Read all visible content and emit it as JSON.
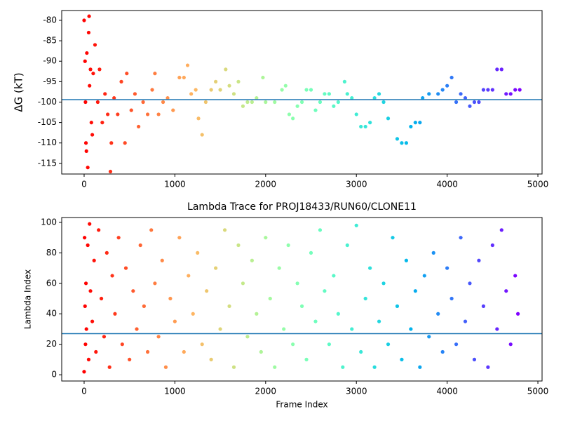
{
  "chart_data": [
    {
      "type": "scatter",
      "ylabel": "ΔG (kT)",
      "colormap": "rainbow_r",
      "xlim": [
        -247,
        5046
      ],
      "ylim": [
        -117.6,
        -77.6
      ],
      "xticks": [
        0,
        1000,
        2000,
        3000,
        4000,
        5000
      ],
      "yticks": [
        -80,
        -85,
        -90,
        -95,
        -100,
        -105,
        -110,
        -115
      ],
      "hline": -99.4,
      "hline_color": "#1f77b4",
      "x": [
        0,
        10,
        15,
        20,
        25,
        30,
        40,
        50,
        55,
        60,
        70,
        80,
        90,
        100,
        120,
        150,
        170,
        200,
        230,
        260,
        290,
        300,
        330,
        370,
        410,
        450,
        470,
        520,
        560,
        600,
        650,
        700,
        750,
        780,
        820,
        870,
        920,
        980,
        1050,
        1100,
        1140,
        1180,
        1230,
        1260,
        1300,
        1340,
        1400,
        1450,
        1500,
        1560,
        1600,
        1650,
        1700,
        1750,
        1800,
        1850,
        1900,
        1970,
        2000,
        2100,
        2180,
        2220,
        2260,
        2300,
        2350,
        2400,
        2450,
        2500,
        2550,
        2600,
        2650,
        2700,
        2750,
        2800,
        2870,
        2900,
        2950,
        3000,
        3050,
        3100,
        3150,
        3200,
        3250,
        3300,
        3350,
        3450,
        3500,
        3550,
        3600,
        3650,
        3700,
        3730,
        3800,
        3900,
        3950,
        4000,
        4050,
        4100,
        4150,
        4200,
        4250,
        4300,
        4350,
        4400,
        4450,
        4500,
        4550,
        4600,
        4650,
        4700,
        4750,
        4800
      ],
      "values": [
        -80,
        -90,
        -100,
        -110,
        -112,
        -88,
        -116,
        -83,
        -79,
        -96,
        -92,
        -105,
        -108,
        -93,
        -86,
        -100,
        -92,
        -105,
        -98,
        -103,
        -117,
        -110,
        -99,
        -103,
        -95,
        -110,
        -93,
        -102,
        -98,
        -106,
        -100,
        -103,
        -97,
        -93,
        -103,
        -100,
        -99,
        -102,
        -94,
        -94,
        -91,
        -98,
        -97,
        -104,
        -108,
        -100,
        -97,
        -95,
        -97,
        -92,
        -96,
        -98,
        -95,
        -101,
        -100,
        -100,
        -99,
        -94,
        -100,
        -100,
        -97,
        -96,
        -103,
        -104,
        -101,
        -100,
        -97,
        -97,
        -102,
        -100,
        -98,
        -98,
        -101,
        -100,
        -95,
        -98,
        -99,
        -103,
        -106,
        -106,
        -105,
        -99,
        -98,
        -100,
        -104,
        -109,
        -110,
        -110,
        -106,
        -105,
        -105,
        -99,
        -98,
        -98,
        -97,
        -96,
        -94,
        -100,
        -98,
        -99,
        -101,
        -100,
        -100,
        -97,
        -97,
        -97,
        -92,
        -92,
        -98,
        -98,
        -97,
        -97
      ]
    },
    {
      "type": "scatter",
      "title": "Lambda Trace for PROJ18433/RUN60/CLONE11",
      "xlabel": "Frame Index",
      "ylabel": "Lambda Index",
      "colormap": "rainbow_r",
      "xlim": [
        -247,
        5046
      ],
      "ylim": [
        -4.1,
        103.2
      ],
      "xticks": [
        0,
        1000,
        2000,
        3000,
        4000,
        5000
      ],
      "yticks": [
        0,
        20,
        40,
        60,
        80,
        100
      ],
      "hline": 27,
      "hline_color": "#1f77b4",
      "x": [
        0,
        5,
        10,
        15,
        20,
        25,
        40,
        50,
        60,
        70,
        90,
        110,
        130,
        160,
        190,
        220,
        250,
        280,
        310,
        340,
        380,
        420,
        460,
        500,
        540,
        580,
        620,
        660,
        700,
        740,
        780,
        820,
        860,
        900,
        950,
        1000,
        1050,
        1100,
        1150,
        1200,
        1250,
        1300,
        1350,
        1400,
        1450,
        1500,
        1550,
        1600,
        1650,
        1700,
        1750,
        1800,
        1850,
        1900,
        1950,
        2000,
        2050,
        2100,
        2150,
        2200,
        2250,
        2300,
        2350,
        2400,
        2450,
        2500,
        2550,
        2600,
        2650,
        2700,
        2750,
        2800,
        2850,
        2900,
        2950,
        3000,
        3050,
        3100,
        3150,
        3200,
        3250,
        3300,
        3350,
        3400,
        3450,
        3500,
        3550,
        3600,
        3650,
        3700,
        3750,
        3800,
        3850,
        3900,
        3950,
        4000,
        4050,
        4100,
        4150,
        4200,
        4250,
        4300,
        4350,
        4400,
        4450,
        4500,
        4550,
        4600,
        4650,
        4700,
        4750,
        4780
      ],
      "values": [
        2,
        90,
        45,
        20,
        60,
        30,
        85,
        10,
        99,
        55,
        35,
        75,
        15,
        95,
        50,
        25,
        80,
        5,
        65,
        40,
        90,
        20,
        70,
        10,
        55,
        30,
        85,
        45,
        15,
        95,
        60,
        25,
        75,
        5,
        50,
        35,
        90,
        15,
        65,
        40,
        80,
        20,
        55,
        10,
        70,
        30,
        95,
        45,
        5,
        85,
        60,
        25,
        75,
        40,
        15,
        90,
        50,
        5,
        70,
        30,
        85,
        20,
        60,
        45,
        10,
        80,
        35,
        95,
        55,
        20,
        65,
        40,
        5,
        85,
        30,
        98,
        15,
        50,
        70,
        5,
        35,
        60,
        20,
        90,
        45,
        10,
        75,
        30,
        55,
        5,
        65,
        25,
        80,
        40,
        15,
        70,
        50,
        20,
        90,
        35,
        60,
        10,
        75,
        45,
        5,
        85,
        30,
        95,
        55,
        20,
        65,
        40
      ]
    }
  ]
}
